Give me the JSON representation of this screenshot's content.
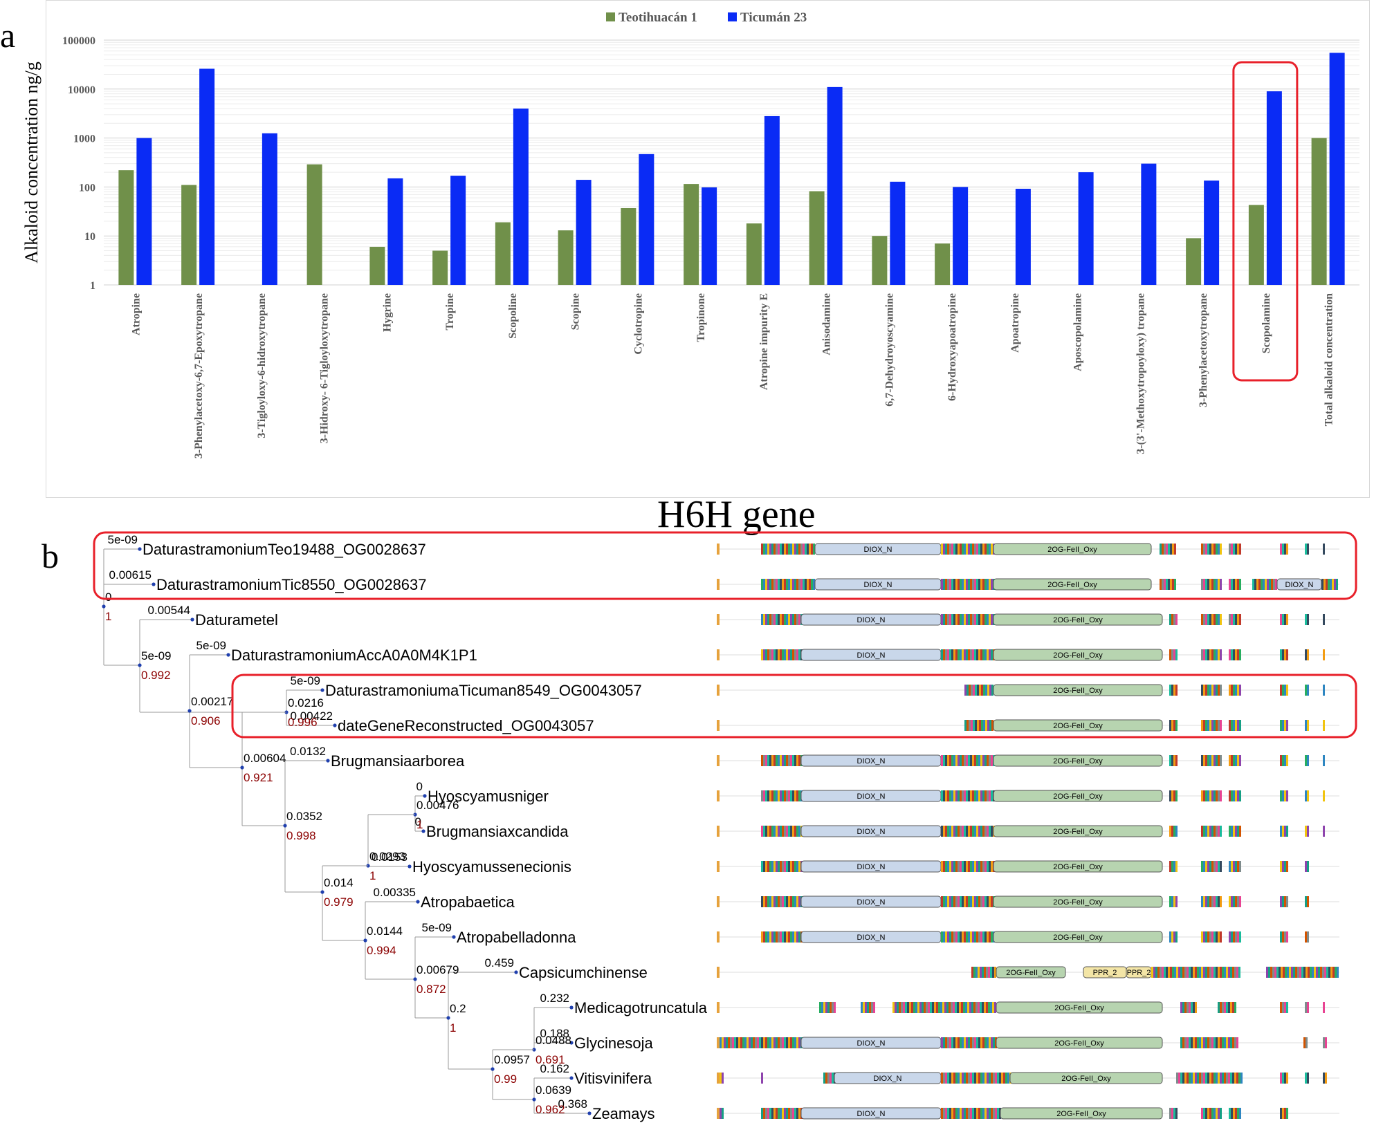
{
  "panel_a_letter": "a",
  "panel_b_letter": "b",
  "gene_title": "H6H gene",
  "chart_data": {
    "type": "bar",
    "scale": "log",
    "ylim": [
      1,
      100000
    ],
    "yticks": [
      "1",
      "10",
      "100",
      "1000",
      "10000",
      "100000"
    ],
    "ylabel": "Alkaloid concentration ng/g",
    "xlabel": "",
    "legend_position": "top-center",
    "categories": [
      "Atropine",
      "3-Phenylacetoxy-6,7-Epoxytropane",
      "3-Tigloyloxy-6-hidroxytropane",
      "3-Hidroxy- 6-Tigloyloxytropane",
      "Hygrine",
      "Tropine",
      "Scopoline",
      "Scopine",
      "Cyclotropine",
      "Tropinone",
      "Atropine impurity E",
      "Anisodamine",
      "6,7-Dehydroyoscyamine",
      "6-Hydroxyapoatropine",
      "Apoatropine",
      "Aposcopolamine",
      "3-(3'-Methoxytropoyloxy) tropane",
      "3-Phenylacetoxytropane",
      "Scopolamine",
      "Total alkaloid concentration"
    ],
    "series": [
      {
        "name": "Teotihuacán 1",
        "color": "#70904a",
        "values": [
          220,
          110,
          null,
          290,
          6,
          5,
          19,
          13,
          37,
          115,
          18,
          82,
          10,
          7,
          null,
          null,
          null,
          9,
          43,
          1000
        ]
      },
      {
        "name": "Ticumán 23",
        "color": "#0a2bf5",
        "values": [
          1000,
          26000,
          1250,
          null,
          150,
          170,
          4000,
          140,
          470,
          98,
          2800,
          11000,
          128,
          100,
          92,
          200,
          300,
          135,
          9000,
          55000
        ]
      }
    ],
    "highlight_category": "Scopolamine",
    "highlight_color": "#e8202a"
  },
  "tree": {
    "leaves": [
      "DaturastramoniumTeo19488_OG0028637",
      "DaturastramoniumTic8550_OG0028637",
      "Daturametel",
      "DaturastramoniumAccA0A0M4K1P1",
      "DaturastramoniumaTicuman8549_OG0043057",
      "dateGeneReconstructed_OG0043057",
      "Brugmansiaarborea",
      "Hyoscyamusniger",
      "Brugmansiaxcandida",
      "Hyoscyamussenecionis",
      "Atropabaetica",
      "Atropabelladonna",
      "Capsicumchinense",
      "Medicagotruncatula",
      "Glycinesoja",
      "Vitisvinifera",
      "Zeamays"
    ],
    "leaf_branch_lengths": [
      "5e-09",
      "0.00615",
      "0.00544",
      "5e-09",
      "5e-09",
      "0.00422",
      "0.0132",
      "0",
      "0",
      "0.0153",
      "0.00335",
      "5e-09",
      "0.459",
      "0.232",
      "0.188",
      "0.162",
      "0.368"
    ],
    "internal_nodes": [
      {
        "length": "0",
        "support": "1"
      },
      {
        "length": "5e-09",
        "support": "0.992"
      },
      {
        "length": "0.00217",
        "support": "0.906"
      },
      {
        "length": "0.0216",
        "support": "0.996"
      },
      {
        "length": "0.00604",
        "support": "0.921"
      },
      {
        "length": "0.0352",
        "support": "0.998"
      },
      {
        "length": "0.00476",
        "support": "1"
      },
      {
        "length": "0.0293",
        "support": "1"
      },
      {
        "length": "0.014",
        "support": "0.979"
      },
      {
        "length": "0.0144",
        "support": "0.994"
      },
      {
        "length": "0.00679",
        "support": "0.872"
      },
      {
        "length": "0.2",
        "support": "1"
      },
      {
        "length": "0.0488",
        "support": "0.691"
      },
      {
        "length": "0.0957",
        "support": "0.99"
      },
      {
        "length": "0.0639",
        "support": "0.962"
      }
    ]
  },
  "domains": {
    "diox": "DIOX_N",
    "oxy": "2OG-FeII_Oxy",
    "ppr": "PPR_2",
    "ppr_short": "PPR_2"
  }
}
